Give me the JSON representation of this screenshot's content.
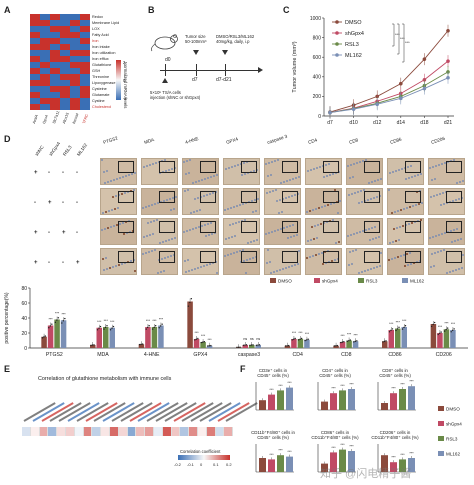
{
  "panelA": {
    "label": "A",
    "rows": [
      "Redox",
      "Membrane Lipid",
      "LOX",
      "Fatty Acid",
      "Iron",
      "Iron intake",
      "Iron utilization",
      "Iron efflux",
      "Glutathione",
      "GSH",
      "Threonine",
      "Lipoxygenase",
      "Cysteine",
      "Glutamate",
      "Cystine",
      "Cholesterol"
    ],
    "cols": [
      "Acsl4",
      "Gpx4",
      "Slc7a11",
      "Alox15",
      "Ncoa4",
      "TFRC"
    ],
    "colorbar_title": "Normalized mRNA levels",
    "colorbar_ticks": [
      "-2",
      "0",
      "2"
    ]
  },
  "panelB": {
    "label": "B",
    "tumor_size": "Tumor size\n50-100mm³",
    "treatment": "DMSO/RSL3/ML162\n40mg/kg, daily, i.p",
    "injection": "5×10⁵ TS/A cells\ninjection (shNC or shGpx4)",
    "d0": "d0",
    "d7": "d7",
    "d7_21": "d7-d21"
  },
  "panelC": {
    "label": "C",
    "ylabel": "Tumor volume (mm³)"
  },
  "panelD": {
    "label": "D",
    "group_labels": [
      "shNC",
      "shGpx4",
      "RSL3",
      "ML162"
    ],
    "stains": [
      "PTGS2",
      "MDA",
      "4-HNE",
      "GPX4",
      "caspase 3",
      "CD4",
      "CD8",
      "CD86",
      "CD206"
    ],
    "row_signs": [
      [
        "+",
        "-",
        "-",
        "-"
      ],
      [
        "-",
        "+",
        "-",
        "-"
      ],
      [
        "+",
        "-",
        "+",
        "-"
      ],
      [
        "+",
        "-",
        "-",
        "+"
      ]
    ],
    "bar_ylabel": "positive percentage(%)",
    "legend": [
      "DMSO",
      "shGpx4",
      "RSL3",
      "ML162"
    ],
    "sig": "***",
    "ns": "ns"
  },
  "panelE": {
    "label": "E",
    "title": "Correlation of glutathione metabolism with immune cells",
    "colorbar_title": "Correlation coefficient",
    "colorbar_ticks": [
      "-0.2",
      "-0.1",
      "0",
      "0.1",
      "0.2"
    ]
  },
  "panelF": {
    "label": "F",
    "top_titles": [
      "CD3e⁺ cells in\nCD45⁺ cells (%)",
      "CD4⁺ cells in\nCD45⁺ cells (%)",
      "CD8⁺ cells in\nCD45⁺ cells (%)"
    ],
    "bottom_titles": [
      "CD11b⁺F4/80⁺ cells in\nCD45⁺ cells (%)",
      "CD86⁺ cells in\nCD11b⁺F4/80⁺ cells (%)",
      "CD206⁺ cells in\nCD11b⁺F4/80⁺ cells (%)"
    ],
    "legend": [
      "DMSO",
      "shGpx4",
      "RSL3",
      "ML162"
    ],
    "sig": "***"
  },
  "watermark": "知乎 @闪电精子酱",
  "colors": {
    "DMSO": "#8b4a3c",
    "shGpx4": "#c04a64",
    "RSL3": "#6a8a48",
    "ML162": "#7a8fb5",
    "hm_red": "#c8322c",
    "hm_blue": "#3a6fb5"
  },
  "chart_data": [
    {
      "type": "line",
      "title": "",
      "xlabel": "",
      "ylabel": "Tumor volume (mm³)",
      "categories": [
        "d7",
        "d10",
        "d12",
        "d14",
        "d18",
        "d21"
      ],
      "ylim": [
        0,
        1000
      ],
      "yticks": [
        0,
        200,
        400,
        600,
        800,
        1000
      ],
      "series": [
        {
          "name": "DMSO",
          "values": [
            40,
            110,
            200,
            330,
            580,
            870
          ]
        },
        {
          "name": "shGpx4",
          "values": [
            35,
            80,
            150,
            230,
            370,
            560
          ]
        },
        {
          "name": "RSL3",
          "values": [
            35,
            75,
            130,
            200,
            310,
            450
          ]
        },
        {
          "name": "ML162",
          "values": [
            35,
            70,
            120,
            180,
            280,
            390
          ]
        }
      ],
      "legend": "top-left"
    },
    {
      "type": "bar",
      "ylabel": "positive percentage(%)",
      "categories": [
        "PTGS2",
        "MDA",
        "4-HNE",
        "GPX4",
        "caspase3",
        "CD4",
        "CD8",
        "CD86",
        "CD206"
      ],
      "ylim": [
        0,
        80
      ],
      "yticks": [
        0,
        20,
        40,
        60,
        80
      ],
      "series": [
        {
          "name": "DMSO",
          "values": [
            15,
            4,
            5,
            62,
            1,
            3,
            3,
            9,
            32
          ]
        },
        {
          "name": "shGpx4",
          "values": [
            30,
            27,
            28,
            12,
            4,
            12,
            8,
            24,
            20
          ]
        },
        {
          "name": "RSL3",
          "values": [
            38,
            28,
            28,
            8,
            4,
            12,
            10,
            26,
            25
          ]
        },
        {
          "name": "ML162",
          "values": [
            37,
            27,
            30,
            3,
            4,
            11,
            9,
            28,
            24
          ]
        }
      ]
    }
  ]
}
